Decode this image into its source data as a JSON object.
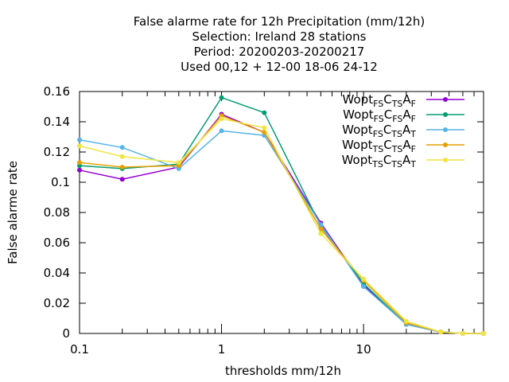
{
  "chart_data": {
    "type": "line",
    "title_lines": [
      "False alarme rate  for 12h Precipitation (mm/12h)",
      "Selection: Ireland     28 stations",
      "Period: 20200203-20200217",
      "Used  00,12  + 12-00 18-06 24-12"
    ],
    "xlabel": "thresholds mm/12h",
    "ylabel": "False alarme rate",
    "x_scale": "log",
    "xlim": [
      0.1,
      70
    ],
    "ylim": [
      0,
      0.16
    ],
    "x_ticks": [
      {
        "value": 0.1,
        "label": "0.1"
      },
      {
        "value": 1,
        "label": "1"
      },
      {
        "value": 10,
        "label": "10"
      }
    ],
    "y_ticks": [
      {
        "value": 0,
        "label": "0"
      },
      {
        "value": 0.02,
        "label": "0.02"
      },
      {
        "value": 0.04,
        "label": "0.04"
      },
      {
        "value": 0.06,
        "label": "0.06"
      },
      {
        "value": 0.08,
        "label": "0.08"
      },
      {
        "value": 0.1,
        "label": "0.1"
      },
      {
        "value": 0.12,
        "label": "0.12"
      },
      {
        "value": 0.14,
        "label": "0.14"
      },
      {
        "value": 0.16,
        "label": "0.16"
      }
    ],
    "grid": false,
    "legend_position": "top-right",
    "x": [
      0.1,
      0.2,
      0.5,
      1,
      2,
      5,
      10,
      20,
      35,
      50,
      70
    ],
    "series": [
      {
        "legend": [
          [
            "Wopt",
            ""
          ],
          [
            "FS",
            "sub"
          ],
          [
            "C",
            ""
          ],
          [
            "TS",
            "sub"
          ],
          [
            "A",
            ""
          ],
          [
            "F",
            "sub"
          ]
        ],
        "color": "#9400d3",
        "values": [
          0.108,
          0.102,
          0.11,
          0.145,
          0.133,
          0.073,
          0.032,
          0.006,
          0.001,
          0.0,
          0.0
        ]
      },
      {
        "legend": [
          [
            "Wopt",
            ""
          ],
          [
            "FS",
            "sub"
          ],
          [
            "C",
            ""
          ],
          [
            "FS",
            "sub"
          ],
          [
            "A",
            ""
          ],
          [
            "F",
            "sub"
          ]
        ],
        "color": "#009e73",
        "values": [
          0.111,
          0.109,
          0.112,
          0.156,
          0.146,
          0.071,
          0.033,
          0.006,
          0.001,
          0.0,
          0.0
        ]
      },
      {
        "legend": [
          [
            "Wopt",
            ""
          ],
          [
            "FS",
            "sub"
          ],
          [
            "C",
            ""
          ],
          [
            "TS",
            "sub"
          ],
          [
            "A",
            ""
          ],
          [
            "T",
            "sub"
          ]
        ],
        "color": "#56b4e9",
        "values": [
          0.128,
          0.123,
          0.109,
          0.134,
          0.131,
          0.072,
          0.031,
          0.006,
          0.001,
          0.0,
          0.0
        ]
      },
      {
        "legend": [
          [
            "Wopt",
            ""
          ],
          [
            "TS",
            "sub"
          ],
          [
            "C",
            ""
          ],
          [
            "TS",
            "sub"
          ],
          [
            "A",
            ""
          ],
          [
            "F",
            "sub"
          ]
        ],
        "color": "#e69f00",
        "values": [
          0.113,
          0.11,
          0.111,
          0.144,
          0.133,
          0.069,
          0.035,
          0.007,
          0.001,
          0.0,
          0.0
        ]
      },
      {
        "legend": [
          [
            "Wopt",
            ""
          ],
          [
            "TS",
            "sub"
          ],
          [
            "C",
            ""
          ],
          [
            "TS",
            "sub"
          ],
          [
            "A",
            ""
          ],
          [
            "T",
            "sub"
          ]
        ],
        "color": "#f0e442",
        "values": [
          0.124,
          0.117,
          0.113,
          0.142,
          0.136,
          0.066,
          0.036,
          0.008,
          0.001,
          0.0,
          0.0
        ]
      }
    ]
  }
}
